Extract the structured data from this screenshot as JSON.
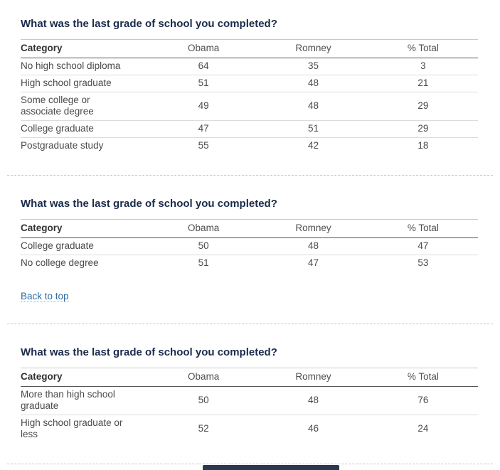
{
  "page": {
    "title_color": "#1a2b4c",
    "link_color": "#2e6da4",
    "bottom_bar_color": "#2b3950"
  },
  "sections": [
    {
      "title": "What was the last grade of school you completed?",
      "columns": {
        "category": "Category",
        "obama": "Obama",
        "romney": "Romney",
        "total": "% Total"
      },
      "rows": [
        {
          "category": "No high school diploma",
          "obama": "64",
          "romney": "35",
          "total": "3"
        },
        {
          "category": "High school graduate",
          "obama": "51",
          "romney": "48",
          "total": "21"
        },
        {
          "category": "Some college or associate degree",
          "obama": "49",
          "romney": "48",
          "total": "29"
        },
        {
          "category": "College graduate",
          "obama": "47",
          "romney": "51",
          "total": "29"
        },
        {
          "category": "Postgraduate study",
          "obama": "55",
          "romney": "42",
          "total": "18"
        }
      ]
    },
    {
      "title": "What was the last grade of school you completed?",
      "columns": {
        "category": "Category",
        "obama": "Obama",
        "romney": "Romney",
        "total": "% Total"
      },
      "rows": [
        {
          "category": "College graduate",
          "obama": "50",
          "romney": "48",
          "total": "47"
        },
        {
          "category": "No college degree",
          "obama": "51",
          "romney": "47",
          "total": "53"
        }
      ],
      "back_link": "Back to top"
    },
    {
      "title": "What was the last grade of school you completed?",
      "columns": {
        "category": "Category",
        "obama": "Obama",
        "romney": "Romney",
        "total": "% Total"
      },
      "rows": [
        {
          "category": "More than high school graduate",
          "obama": "50",
          "romney": "48",
          "total": "76"
        },
        {
          "category": "High school graduate or less",
          "obama": "52",
          "romney": "46",
          "total": "24"
        }
      ]
    }
  ]
}
